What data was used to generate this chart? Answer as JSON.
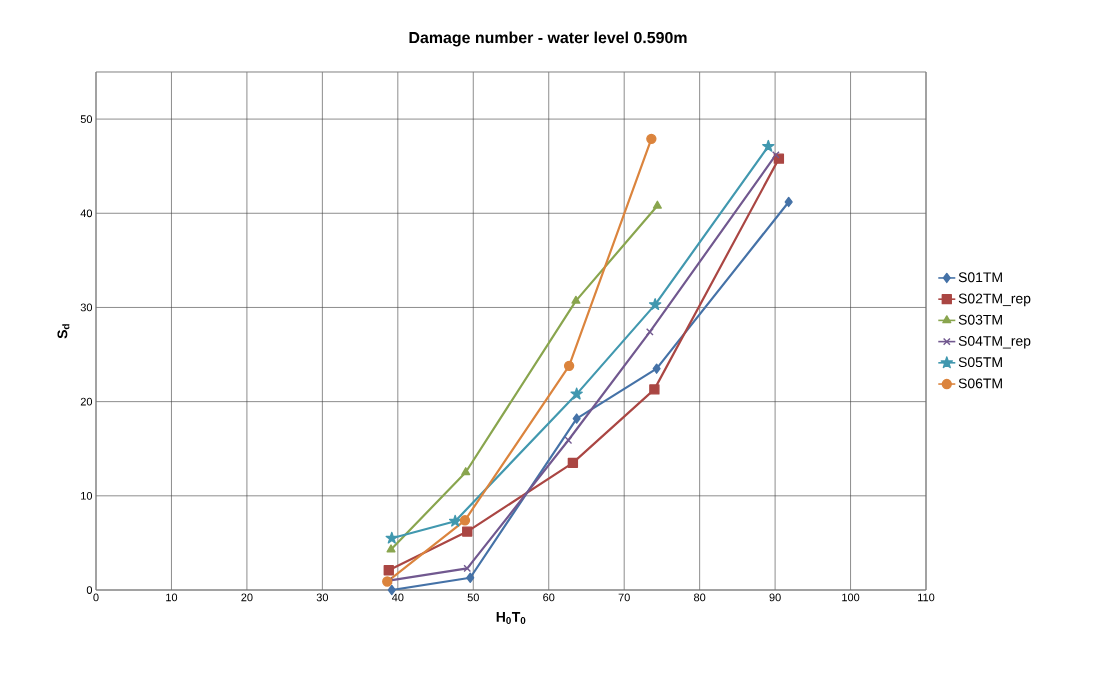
{
  "chart_data": {
    "type": "line",
    "title": "Damage number - water level 0.590m",
    "xlabel": "H$_{0}$T$_{0}$",
    "ylabel": "S$_{d}$",
    "xlim": [
      0,
      110
    ],
    "xticks": [
      0,
      10,
      20,
      30,
      40,
      50,
      60,
      70,
      80,
      90,
      100,
      110
    ],
    "ylim": [
      0,
      55
    ],
    "yticks": [
      0,
      10,
      20,
      30,
      40,
      50
    ],
    "grid": true,
    "legend": "right",
    "line_style": "solid",
    "series": [
      {
        "name": "S01TM",
        "color": "#4572a7",
        "marker": "diamond",
        "x": [
          39.2,
          49.6,
          63.7,
          74.3,
          91.8
        ],
        "values": [
          0,
          1.3,
          18.2,
          23.5,
          41.2
        ]
      },
      {
        "name": "S02TM_rep",
        "color": "#aa4643",
        "marker": "square",
        "x": [
          38.8,
          49.2,
          63.2,
          74.0,
          90.5
        ],
        "values": [
          2.1,
          6.2,
          13.5,
          21.3,
          45.8
        ]
      },
      {
        "name": "S03TM",
        "color": "#89a54e",
        "marker": "triangle",
        "x": [
          39.1,
          49.0,
          63.6,
          74.4
        ],
        "values": [
          4.3,
          12.5,
          30.7,
          40.8
        ]
      },
      {
        "name": "S04TM_rep",
        "color": "#71588f",
        "marker": "cross",
        "x": [
          38.8,
          49.2,
          62.6,
          73.4,
          90.1
        ],
        "values": [
          1.0,
          2.3,
          15.9,
          27.4,
          46.2
        ]
      },
      {
        "name": "S05TM",
        "color": "#4198af",
        "marker": "star",
        "x": [
          39.2,
          47.6,
          63.7,
          74.1,
          89.1
        ],
        "values": [
          5.5,
          7.3,
          20.8,
          30.3,
          47.1
        ]
      },
      {
        "name": "S06TM",
        "color": "#db843d",
        "marker": "circle",
        "x": [
          38.6,
          48.9,
          62.7,
          73.6
        ],
        "values": [
          0.9,
          7.4,
          23.8,
          47.9
        ]
      }
    ]
  }
}
